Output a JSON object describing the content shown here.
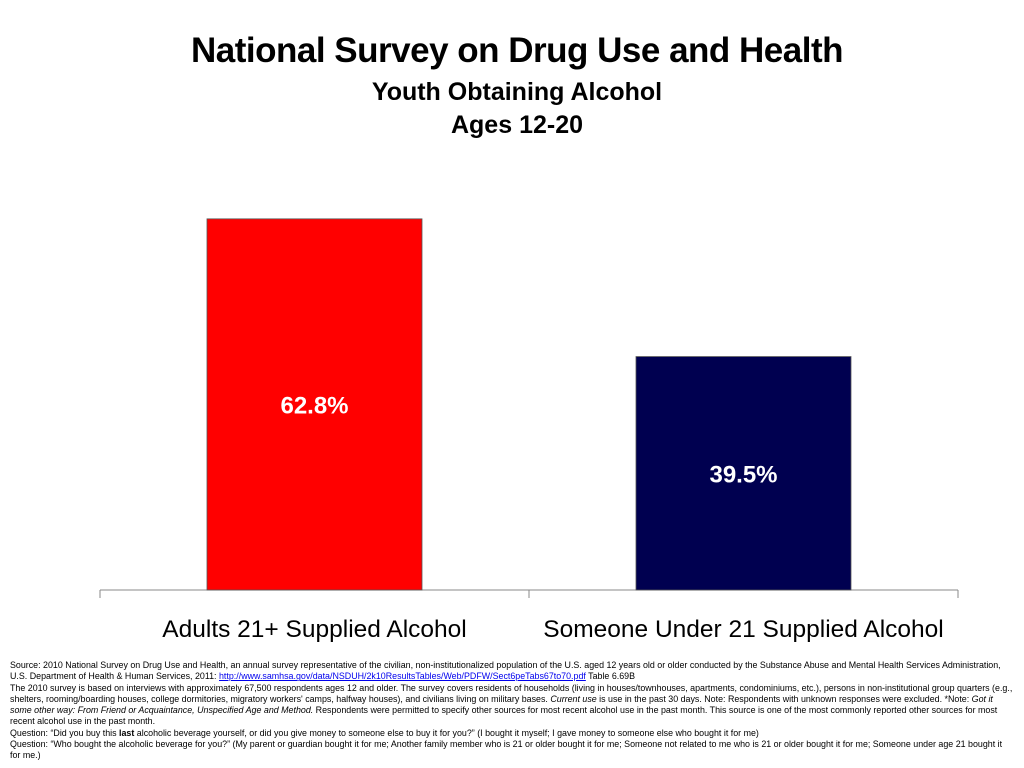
{
  "chart_data": {
    "type": "bar",
    "title": "National Survey on Drug Use and Health",
    "subtitle": [
      "Youth Obtaining Alcohol",
      "Ages 12-20"
    ],
    "categories": [
      "Adults 21+ Supplied Alcohol",
      "Someone Under 21 Supplied Alcohol"
    ],
    "values": [
      62.8,
      39.5
    ],
    "data_labels": [
      "62.8%",
      "39.5%"
    ],
    "colors": [
      "#ff0000",
      "#000050"
    ],
    "ylim": [
      0,
      100
    ],
    "grid": false,
    "legend": "none",
    "xlabel": "",
    "ylabel": ""
  },
  "footnote": {
    "source_pre": "Source: 2010 National Survey on Drug Use and Health, an annual survey representative of the civilian, non-institutionalized population of the U.S. aged 12 years old or older conducted by the Substance Abuse and Mental Health Services Administration, U.S. Department of Health & Human Services, 2011: ",
    "source_link": "http://www.samhsa.gov/data/NSDUH/2k10ResultsTables/Web/PDFW/Sect6peTabs67to70.pdf",
    "source_post": " Table 6.69B",
    "method_1": "The 2010 survey is based on interviews with approximately 67,500 respondents ages 12 and older. The survey covers residents of households (living in houses/townhouses, apartments, condominiums, etc.), persons in non-institutional group quarters (e.g., shelters, rooming/boarding houses, college dormitories, migratory workers' camps, halfway houses), and civilians living on military bases. ",
    "method_current_use": "Current use",
    "method_2": " is use in the past 30 days.  Note: Respondents with unknown responses were excluded. *Note: ",
    "method_note_italic": "Got it some other way: From Friend or Acquaintance, Unspecified Age and Method.",
    "method_3": " Respondents were permitted to specify other sources for most recent alcohol use in the past month. This source is one of the most commonly reported other sources for most recent alcohol use in the past month.",
    "q1_pre": "Question: “Did you buy this ",
    "q1_bold": "last",
    "q1_post": " alcoholic beverage yourself, or did you give money to someone else to buy it for you?” (I bought it myself; I gave money to someone else who bought it for me)",
    "q2": "Question: “Who bought the alcoholic beverage for you?” (My parent or guardian bought it for me; Another family member who is 21 or older bought it for me; Someone not related to me who is 21 or older bought it for me; Someone under age 21 bought it for me.)"
  }
}
